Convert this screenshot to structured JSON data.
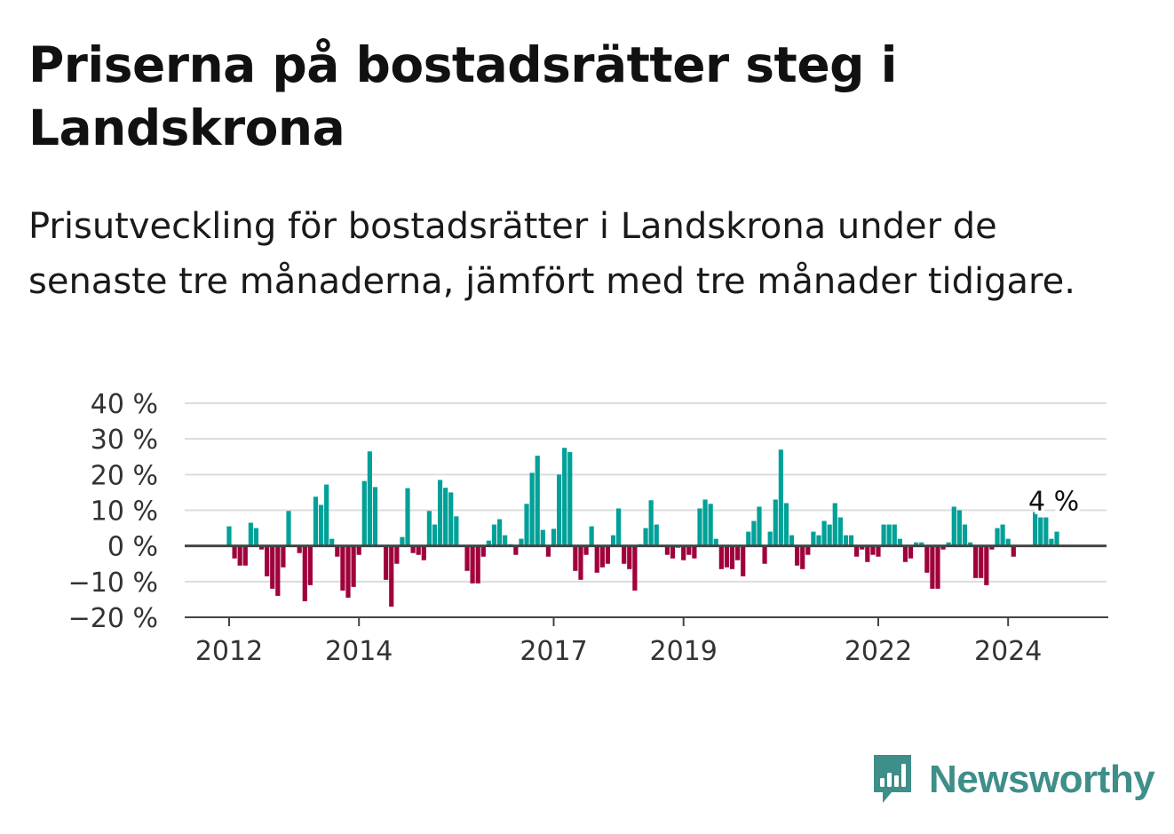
{
  "title": "Priserna på bostadsrätter steg i Landskrona",
  "subtitle": "Prisutveckling för bostadsrätter i Landskrona under de senaste tre månaderna, jämfört med tre månader tidigare.",
  "brand": {
    "name": "Newsworthy",
    "icon": "newsworthy-bar-chart-logo-icon"
  },
  "colors": {
    "positive": "#00a198",
    "negative": "#a0003c",
    "brand": "#3e8e89"
  },
  "chart_data": {
    "type": "bar",
    "title": "Priserna på bostadsrätter steg i Landskrona",
    "xlabel": "",
    "ylabel": "",
    "unit": "%",
    "ylim": [
      -20,
      40
    ],
    "yticks": [
      40,
      30,
      20,
      10,
      0,
      -10,
      -20
    ],
    "ytick_labels": [
      "40 %",
      "30 %",
      "20 %",
      "10 %",
      "0 %",
      "−10 %",
      "−20 %"
    ],
    "xticks": [
      "2012",
      "2014",
      "2017",
      "2019",
      "2022",
      "2024"
    ],
    "grid": true,
    "start": "2012-01",
    "frequency": "monthly",
    "values": [
      5.5,
      -3.5,
      -5.5,
      -5.5,
      6.5,
      5,
      -1,
      -8.5,
      -12,
      -14,
      -6,
      9.8,
      0,
      -2,
      -15.5,
      -11,
      13.8,
      11.5,
      17.2,
      2,
      -3,
      -12.5,
      -14.5,
      -11.5,
      -2.5,
      18.2,
      26.5,
      16.5,
      0,
      -9.5,
      -17,
      -5,
      2.5,
      16.2,
      -2,
      -2.5,
      -4,
      9.8,
      6,
      18.5,
      16.3,
      15,
      8.3,
      0,
      -7,
      -10.5,
      -10.5,
      -3,
      1.5,
      6,
      7.5,
      3,
      0.5,
      -2.5,
      2,
      11.8,
      20.5,
      25.3,
      4.5,
      -3,
      4.8,
      20,
      27.5,
      26.3,
      -7,
      -9.5,
      -2.5,
      5.5,
      -7.5,
      -6,
      -5,
      3,
      10.5,
      -5,
      -6.5,
      -12.5,
      0.5,
      5,
      12.8,
      6,
      0,
      -2.5,
      -3.5,
      -0.5,
      -4,
      -2.5,
      -3.5,
      10.5,
      13,
      11.8,
      2,
      -6.5,
      -6,
      -6.5,
      -4,
      -8.5,
      4,
      7,
      11,
      -5,
      4,
      13,
      27,
      12,
      3,
      -5.5,
      -6.5,
      -2.5,
      4,
      3,
      7,
      6,
      12,
      8,
      3,
      3,
      -3,
      -1,
      -4.5,
      -2.5,
      -3,
      6,
      6,
      6,
      2,
      -4.5,
      -3.5,
      1,
      1,
      -7.5,
      -12,
      -12,
      -1,
      1,
      11,
      10,
      6,
      1,
      -9,
      -9,
      -11,
      -1,
      5,
      6,
      2,
      -3,
      0,
      0,
      0,
      9.5,
      8,
      8,
      2,
      4
    ],
    "annotations": [
      {
        "text": "4 %",
        "target": "last value"
      }
    ]
  }
}
